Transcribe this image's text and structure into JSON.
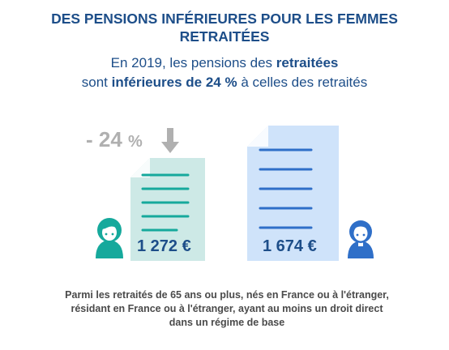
{
  "title": {
    "line1": "DES PENSIONS INFÉRIEURES POUR LES FEMMES",
    "line2": "RETRAITÉES"
  },
  "subtitle": {
    "l1_part1": "En 2019, les pensions des ",
    "l1_bold": "retraitées",
    "l2_part1": "sont ",
    "l2_bold": "inférieures de 24 %",
    "l2_part2": " à celles des retraités"
  },
  "gap": {
    "value": "- 24",
    "unit": "%"
  },
  "women": {
    "amount": "1 272 €",
    "icon": "woman-avatar-icon"
  },
  "men": {
    "amount": "1 674 €",
    "icon": "man-avatar-icon"
  },
  "caption": {
    "line1": "Parmi les retraités de 65 ans ou plus, nés en France ou à l'étranger,",
    "line2": "résidant en France ou à l'étranger, ayant au moins un droit direct",
    "line3": "dans un régime de base"
  },
  "colors": {
    "navy": "#1d4e89",
    "teal": "#16a99c",
    "teal_light": "#cde9e6",
    "blue": "#2f6fc8",
    "blue_light": "#cfe3fa",
    "grey": "#b0b0b0"
  }
}
